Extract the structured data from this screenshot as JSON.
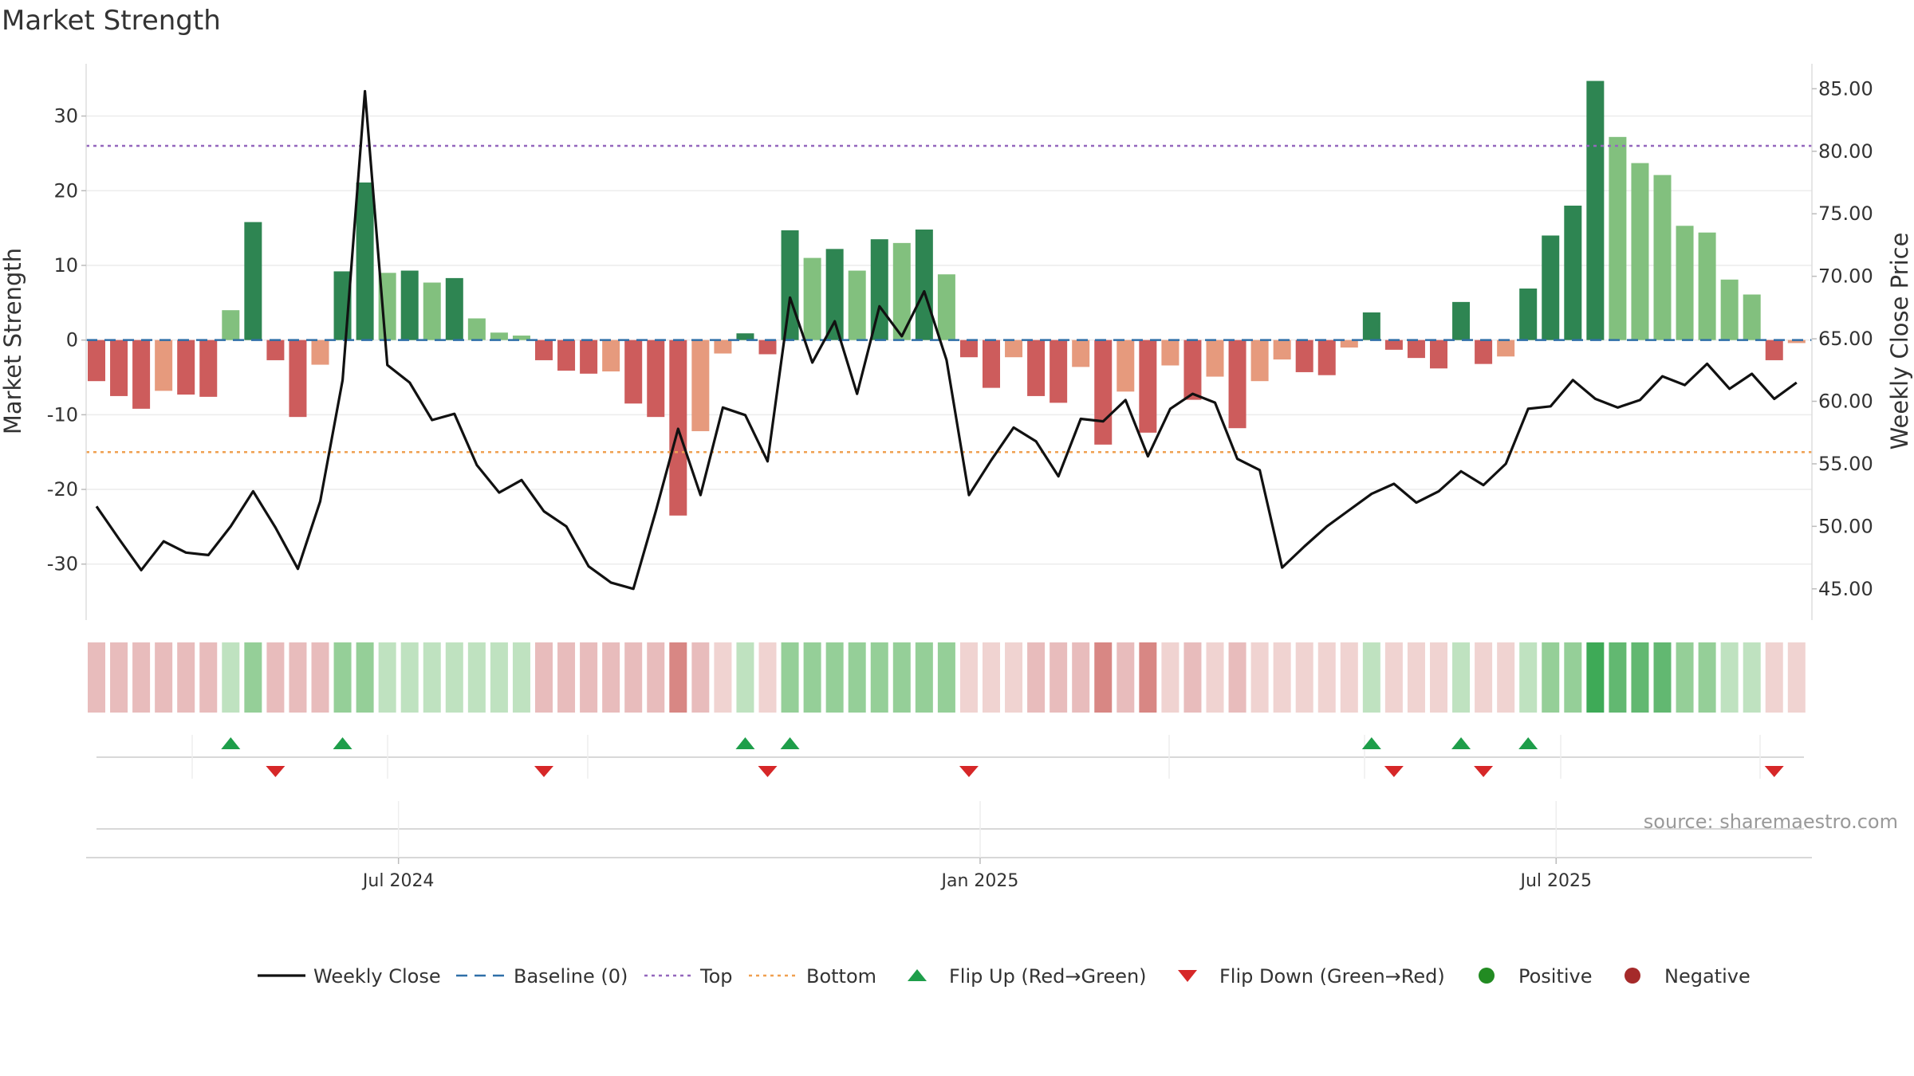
{
  "chart_data": {
    "type": "bar",
    "title": "Market Strength",
    "ylabel": "Market Strength",
    "y2label": "Weekly Close Price",
    "ylim": [
      -37.5,
      37
    ],
    "y2lim": [
      42.5,
      87
    ],
    "yticks": [
      30,
      20,
      10,
      0,
      -10,
      -20,
      -30
    ],
    "y2ticks": [
      "85.00",
      "80.00",
      "75.00",
      "70.00",
      "65.00",
      "60.00",
      "55.00",
      "50.00",
      "45.00"
    ],
    "top_threshold": 26,
    "bottom_threshold": -15,
    "x_tick_labels": [
      "Jul 2024",
      "Jan 2025",
      "Jul 2025"
    ],
    "x_tick_index": [
      13.5,
      39.5,
      65.25
    ],
    "grid": "on",
    "legend_position": "bottom-center",
    "strength": [
      -5.5,
      -7.5,
      -9.2,
      -6.8,
      -7.3,
      -7.6,
      4,
      15.8,
      -2.7,
      -10.3,
      -3.3,
      9.2,
      21.1,
      9,
      9.3,
      7.7,
      8.3,
      2.9,
      1,
      0.6,
      -2.7,
      -4.1,
      -4.5,
      -4.2,
      -8.5,
      -10.3,
      -23.5,
      -12.2,
      -1.8,
      0.9,
      -1.9,
      14.7,
      11,
      12.2,
      9.3,
      13.5,
      13,
      14.8,
      8.8,
      -2.3,
      -6.4,
      -2.3,
      -7.5,
      -8.4,
      -3.6,
      -14,
      -6.9,
      -12.4,
      -3.4,
      -8,
      -4.9,
      -11.8,
      -5.5,
      -2.6,
      -4.3,
      -4.7,
      -1,
      3.7,
      -1.3,
      -2.4,
      -3.8,
      5.1,
      -3.2,
      -2.2,
      6.9,
      14,
      18,
      34.7,
      27.2,
      23.7,
      22.1,
      15.3,
      14.4,
      8.1,
      6.1,
      -2.7,
      -0.4
    ],
    "bar_shade": [
      "m",
      "m",
      "d",
      "l",
      "m",
      "m",
      "l",
      "d",
      "m",
      "d",
      "l",
      "d",
      "d",
      "l",
      "d",
      "l",
      "d",
      "l",
      "l",
      "l",
      "m",
      "m",
      "m",
      "l",
      "m",
      "m",
      "d",
      "l",
      "l",
      "d",
      "m",
      "d",
      "l",
      "d",
      "l",
      "d",
      "l",
      "d",
      "l",
      "m",
      "m",
      "l",
      "m",
      "m",
      "l",
      "m",
      "l",
      "m",
      "l",
      "m",
      "l",
      "m",
      "l",
      "l",
      "m",
      "m",
      "l",
      "d",
      "m",
      "m",
      "m",
      "d",
      "m",
      "l",
      "d",
      "d",
      "d",
      "d",
      "l",
      "l",
      "l",
      "l",
      "l",
      "l",
      "l",
      "m",
      "l"
    ],
    "close_x": [
      0,
      1,
      2,
      3,
      4,
      5,
      6,
      7,
      8,
      9,
      10,
      11,
      12,
      13,
      14,
      15,
      16,
      17,
      18,
      19,
      20,
      21,
      22,
      23,
      24,
      25,
      26,
      27,
      28,
      29,
      30,
      31,
      32,
      33,
      34,
      35,
      36,
      37,
      38,
      39,
      40,
      41,
      42,
      43,
      44,
      45,
      46,
      47,
      48,
      49,
      50,
      51,
      52,
      53,
      54,
      55,
      56,
      57,
      58,
      59,
      60,
      61,
      62,
      63,
      64,
      65,
      66,
      67,
      68,
      69,
      70,
      71,
      72,
      73,
      74,
      75,
      76
    ],
    "close": [
      51.6,
      49,
      46.5,
      48.8,
      47.9,
      47.7,
      50,
      52.8,
      49.9,
      46.6,
      52,
      61.7,
      84.8,
      62.9,
      61.5,
      58.5,
      59,
      54.9,
      52.7,
      53.7,
      51.2,
      50,
      46.8,
      45.5,
      45,
      51.2,
      57.8,
      52.5,
      59.5,
      58.9,
      55.2,
      68.3,
      63.1,
      66.4,
      60.6,
      67.6,
      65.2,
      68.8,
      63.3,
      52.5,
      55.3,
      57.9,
      56.8,
      54,
      58.6,
      58.4,
      60.1,
      55.6,
      59.4,
      60.6,
      59.9,
      55.4,
      54.5,
      46.7,
      48.4,
      50,
      51.3,
      52.6,
      53.4,
      51.9,
      52.8,
      54.4,
      53.3,
      55,
      59.4,
      59.6,
      61.7,
      60.2,
      59.5,
      60.1,
      62,
      61.3,
      63,
      61,
      62.2,
      60.2,
      61.5
    ],
    "heat": [
      -2,
      -2,
      -2,
      -2,
      -2,
      -2,
      1,
      2,
      -2,
      -2,
      -2,
      2,
      2,
      1,
      1,
      1,
      1,
      1,
      1,
      1,
      -2,
      -2,
      -2,
      -2,
      -2,
      -2,
      -3,
      -2,
      -1,
      1,
      -1,
      2,
      2,
      2,
      2,
      2,
      2,
      2,
      2,
      -1,
      -1,
      -1,
      -2,
      -2,
      -2,
      -3,
      -2,
      -3,
      -1,
      -2,
      -1,
      -2,
      -1,
      -1,
      -1,
      -1,
      -1,
      1,
      -1,
      -1,
      -1,
      1,
      -1,
      -1,
      1,
      2,
      2,
      4,
      3,
      3,
      3,
      2,
      2,
      1,
      1,
      -1,
      -1
    ],
    "flips_up": [
      6,
      11,
      29,
      31,
      57,
      61,
      64
    ],
    "flips_down": [
      8,
      20,
      30,
      39,
      58,
      62,
      75
    ],
    "legend": [
      "Weekly Close",
      "Baseline (0)",
      "Top",
      "Bottom",
      "Flip Up (Red→Green)",
      "Flip Down (Green→Red)",
      "Positive",
      "Negative"
    ],
    "colors": {
      "pos_dark": "#2e8552",
      "pos_light": "#82c07e",
      "neg_mid": "#cd5c5c",
      "neg_light": "#e69a7d",
      "close_line": "#111111",
      "baseline": "#2f6fa8",
      "top_line": "#9467bd",
      "bottom_line": "#f0a050",
      "flip_up": "#1e9e4a",
      "flip_down": "#d62728",
      "positive_dot": "#228b22",
      "negative_dot": "#a52a2a"
    },
    "source": "source: sharemaestro.com"
  }
}
